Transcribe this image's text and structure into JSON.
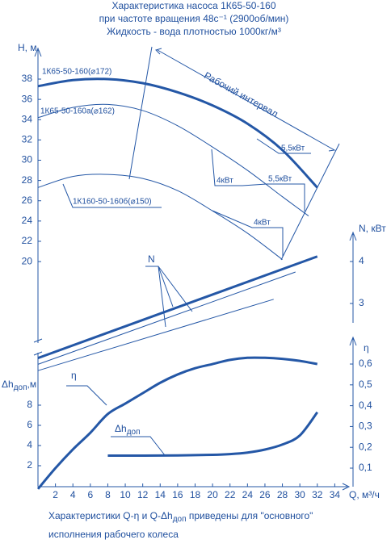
{
  "chart_data": {
    "type": "line",
    "title": [
      "Характеристика насоса 1К65-50-160",
      "при частоте вращения 48с⁻¹ (2900об/мин)",
      "Жидкость - вода плотностью 1000кг/м³"
    ],
    "x_label": "Q, м³/ч",
    "y_label": "H, м",
    "y2_label": "N, кВт",
    "y3_label": "η",
    "y4_label": {
      "main": "Δh",
      "sub": "доп",
      "tail": ",м"
    },
    "color": "#2457a6",
    "xlim": [
      0,
      36
    ],
    "xticks": [
      2,
      4,
      6,
      8,
      10,
      12,
      14,
      16,
      18,
      20,
      22,
      24,
      26,
      28,
      30,
      32,
      34
    ],
    "ylim": [
      17.5,
      40.5
    ],
    "yticks": [
      20,
      22,
      24,
      26,
      28,
      30,
      32,
      34,
      36,
      38
    ],
    "y2lim": [
      2.6,
      4.45
    ],
    "y2ticks": [
      3,
      4
    ],
    "y3lim": [
      0,
      0.68
    ],
    "y3ticks": [
      {
        "value": 0.1,
        "label": "0,1"
      },
      {
        "value": 0.2,
        "label": "0,2"
      },
      {
        "value": 0.3,
        "label": "0,3"
      },
      {
        "value": 0.4,
        "label": "0,4"
      },
      {
        "value": 0.5,
        "label": "0,5"
      },
      {
        "value": 0.6,
        "label": "0,6"
      }
    ],
    "y4lim": [
      0,
      10
    ],
    "y4ticks": [
      2,
      4,
      6,
      8
    ],
    "series": [
      {
        "name": "1К65-50-160(⌀172)",
        "axis": "y",
        "bold": true,
        "x": [
          0,
          4,
          8,
          12,
          16,
          20,
          24,
          28,
          32
        ],
        "values": [
          37.3,
          37.9,
          38,
          37.6,
          36.7,
          35.4,
          33.6,
          31,
          27.3
        ]
      },
      {
        "name": "1К65-50-160а(⌀162)",
        "axis": "y",
        "bold": false,
        "x": [
          0,
          4,
          8,
          12,
          16,
          20,
          24,
          28,
          31
        ],
        "values": [
          34.2,
          35.2,
          35.5,
          34.9,
          33.4,
          31.3,
          29,
          26.4,
          24.5
        ]
      },
      {
        "name": "1К160-50-160б(⌀150)",
        "axis": "y",
        "bold": false,
        "x": [
          0,
          4,
          8,
          12,
          16,
          20,
          24,
          28
        ],
        "values": [
          27.3,
          28.4,
          28.6,
          28.2,
          27,
          25,
          22.8,
          20.2
        ]
      },
      {
        "axis": "y2",
        "bold": true,
        "x": [
          0,
          32
        ],
        "values": [
          1.7,
          4.12
        ]
      },
      {
        "axis": "y2",
        "bold": false,
        "x": [
          0,
          29.5
        ],
        "values": [
          1.55,
          3.75
        ]
      },
      {
        "axis": "y2",
        "bold": false,
        "x": [
          0,
          27
        ],
        "values": [
          1.4,
          3.1
        ]
      },
      {
        "name": "η",
        "axis": "y3",
        "bold": true,
        "x": [
          0,
          2,
          4,
          6,
          8,
          10,
          12,
          14,
          16,
          18,
          20,
          22,
          24,
          26,
          28,
          30,
          32
        ],
        "values": [
          0,
          0.1,
          0.19,
          0.27,
          0.36,
          0.41,
          0.46,
          0.51,
          0.55,
          0.58,
          0.6,
          0.62,
          0.63,
          0.63,
          0.625,
          0.615,
          0.6
        ]
      },
      {
        "name": {
          "main": "Δh",
          "sub": "доп"
        },
        "axis": "y4",
        "bold": true,
        "x": [
          8,
          12,
          16,
          20,
          22,
          24,
          26,
          28,
          30,
          32
        ],
        "values": [
          3,
          3,
          3.02,
          3.08,
          3.15,
          3.3,
          3.6,
          4.1,
          5,
          7.3
        ]
      }
    ],
    "n_label": "N",
    "annotations": [
      "Рабочий интервал",
      "5,5кВт",
      "4кВт",
      "5,5кВт",
      "4кВт"
    ],
    "footer": [
      {
        "before": "Характеристики Q-η и Q-Δh",
        "sub": "доп",
        "after": " приведены для \"основного\""
      },
      "исполнения рабочего колеса"
    ]
  }
}
